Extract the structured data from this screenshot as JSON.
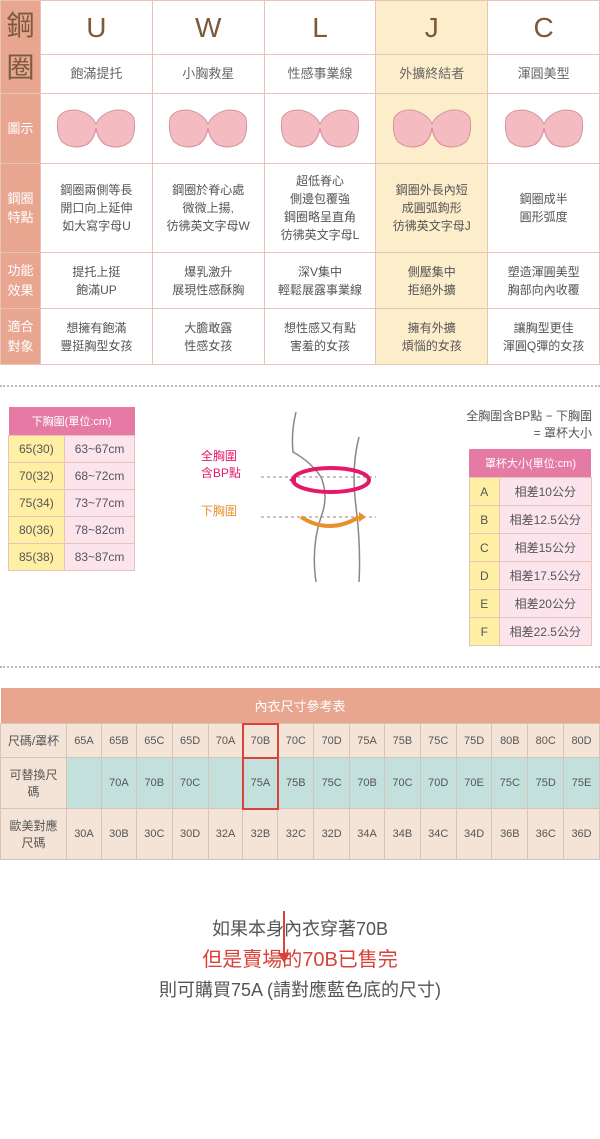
{
  "wire_table": {
    "row_headers": [
      "鋼圈",
      "圖示",
      "鋼圈\n特點",
      "功能\n效果",
      "適合\n對象"
    ],
    "columns": [
      {
        "letter": "U",
        "subtitle": "飽滿提托",
        "feature": "鋼圈兩側等長\n開口向上延伸\n如大寫字母U",
        "effect": "提托上挺\n飽滿UP",
        "target": "想擁有飽滿\n豐挺胸型女孩",
        "highlight": false
      },
      {
        "letter": "W",
        "subtitle": "小胸救星",
        "feature": "鋼圈於脊心處\n微微上揚,\n彷彿英文字母W",
        "effect": "爆乳激升\n展現性感酥胸",
        "target": "大膽敢露\n性感女孩",
        "highlight": false
      },
      {
        "letter": "L",
        "subtitle": "性感事業線",
        "feature": "超低脊心\n側邊包覆強\n鋼圈略呈直角\n彷彿英文字母L",
        "effect": "深V集中\n輕鬆展露事業線",
        "target": "想性感又有點\n害羞的女孩",
        "highlight": false
      },
      {
        "letter": "J",
        "subtitle": "外擴終結者",
        "feature": "鋼圈外長內短\n成圓弧鉤形\n彷彿英文字母J",
        "effect": "側壓集中\n拒絕外擴",
        "target": "擁有外擴\n煩惱的女孩",
        "highlight": true
      },
      {
        "letter": "C",
        "subtitle": "渾圓美型",
        "feature": "鋼圈成半\n圓形弧度",
        "effect": "塑造渾圓美型\n胸部向內收覆",
        "target": "讓胸型更佳\n渾圓Q彈的女孩",
        "highlight": false
      }
    ],
    "bra_color": "#f4bcc0",
    "bra_shadow": "#d98a94"
  },
  "underbust": {
    "header": "下胸圍(單位:cm)",
    "rows": [
      {
        "label": "65(30)",
        "range": "63~67cm"
      },
      {
        "label": "70(32)",
        "range": "68~72cm"
      },
      {
        "label": "75(34)",
        "range": "73~77cm"
      },
      {
        "label": "80(36)",
        "range": "78~82cm"
      },
      {
        "label": "85(38)",
        "range": "83~87cm"
      }
    ]
  },
  "diagram_labels": {
    "full": "全胸圍\n含BP點",
    "under": "下胸圍"
  },
  "formula": "全胸圍含BP點 − 下胸圍\n= 罩杯大小",
  "cup": {
    "header": "罩杯大小(單位:cm)",
    "rows": [
      {
        "letter": "A",
        "diff": "相差10公分"
      },
      {
        "letter": "B",
        "diff": "相差12.5公分"
      },
      {
        "letter": "C",
        "diff": "相差15公分"
      },
      {
        "letter": "D",
        "diff": "相差17.5公分"
      },
      {
        "letter": "E",
        "diff": "相差20公分"
      },
      {
        "letter": "F",
        "diff": "相差22.5公分"
      }
    ]
  },
  "size_ref": {
    "title": "內衣尺寸參考表",
    "row_labels": [
      "尺碼/罩杯",
      "可替換尺碼",
      "歐美對應\n尺碼"
    ],
    "sizes": [
      "65A",
      "65B",
      "65C",
      "65D",
      "70A",
      "70B",
      "70C",
      "70D",
      "75A",
      "75B",
      "75C",
      "75D",
      "80B",
      "80C",
      "80D"
    ],
    "alts": [
      "",
      "70A",
      "70B",
      "70C",
      "",
      "75A",
      "75B",
      "75C",
      "70B",
      "70C",
      "70D",
      "70E",
      "75C",
      "75D",
      "75E"
    ],
    "euros": [
      "30A",
      "30B",
      "30C",
      "30D",
      "32A",
      "32B",
      "32C",
      "32D",
      "34A",
      "34B",
      "34C",
      "34D",
      "36B",
      "36C",
      "36D"
    ],
    "highlight_index": 5
  },
  "note": {
    "line1": "如果本身內衣穿著70B",
    "line2": "但是賣場的70B已售完",
    "line3": "則可購買75A (請對應藍色底的尺寸)"
  },
  "colors": {
    "header_bg": "#e8a590",
    "highlight_col_bg": "#fdeecb",
    "pink_header": "#e57ba5",
    "yellow_cell": "#feefa5",
    "pink_cell": "#fce4ed",
    "teal_cell": "#c4e0dc",
    "beige_cell": "#f4e4d8",
    "red": "#d9423a"
  }
}
